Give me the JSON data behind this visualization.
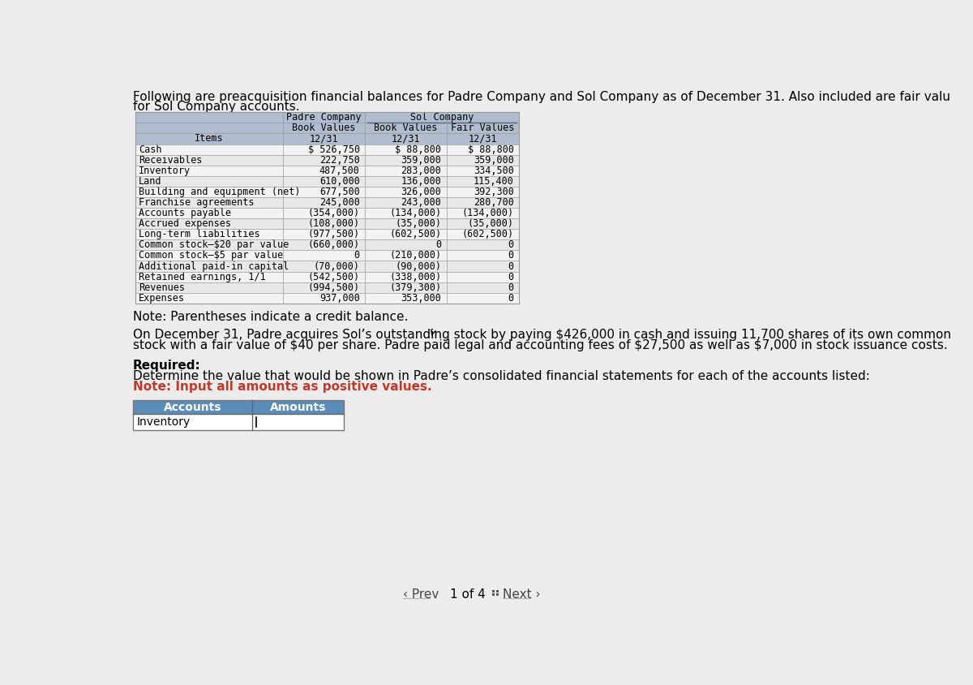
{
  "intro_line1": "Following are preacquisition financial balances for Padre Company and Sol Company as of December 31. Also included are fair valu",
  "intro_line2": "for Sol Company accounts.",
  "items": [
    "Cash",
    "Receivables",
    "Inventory",
    "Land",
    "Building and equipment (net)",
    "Franchise agreements",
    "Accounts payable",
    "Accrued expenses",
    "Long-term liabilities",
    "Common stock–$20 par value",
    "Common stock–$5 par value",
    "Additional paid-in capital",
    "Retained earnings, 1/1",
    "Revenues",
    "Expenses"
  ],
  "padre_values": [
    "$ 526,750",
    "222,750",
    "487,500",
    "610,000",
    "677,500",
    "245,000",
    "(354,000)",
    "(108,000)",
    "(977,500)",
    "(660,000)",
    "0",
    "(70,000)",
    "(542,500)",
    "(994,500)",
    "937,000"
  ],
  "sol_book_values": [
    "$ 88,800",
    "359,000",
    "283,000",
    "136,000",
    "326,000",
    "243,000",
    "(134,000)",
    "(35,000)",
    "(602,500)",
    "0",
    "(210,000)",
    "(90,000)",
    "(338,000)",
    "(379,300)",
    "353,000"
  ],
  "sol_fair_values": [
    "$ 88,800",
    "359,000",
    "334,500",
    "115,400",
    "392,300",
    "280,700",
    "(134,000)",
    "(35,000)",
    "(602,500)",
    "0",
    "0",
    "0",
    "0",
    "0",
    "0"
  ],
  "note_text": "Note: Parentheses indicate a credit balance.",
  "para_line1": "On December 31, Padre acquires Sol’s outstanding stock by paying $426,000 in cash and issuing 11,700 shares of its own common",
  "para_line2": "stock with a fair value of $40 per share. Padre paid legal and accounting fees of $27,500 as well as $7,000 in stock issuance costs.",
  "required_label": "Required:",
  "required_text": "Determine the value that would be shown in Padre’s consolidated financial statements for each of the accounts listed:",
  "note_red": "Note: Input all amounts as positive values.",
  "bg_color": "#ececec",
  "table_header_bg": "#b0bdd0",
  "table_even_bg": "#e8e8e8",
  "table_odd_bg": "#f2f2f2",
  "input_header_bg": "#5b8db8",
  "input_header_fg": "#ffffff",
  "red_color": "#c0392b",
  "border_color": "#999999",
  "nav_color": "#444444"
}
